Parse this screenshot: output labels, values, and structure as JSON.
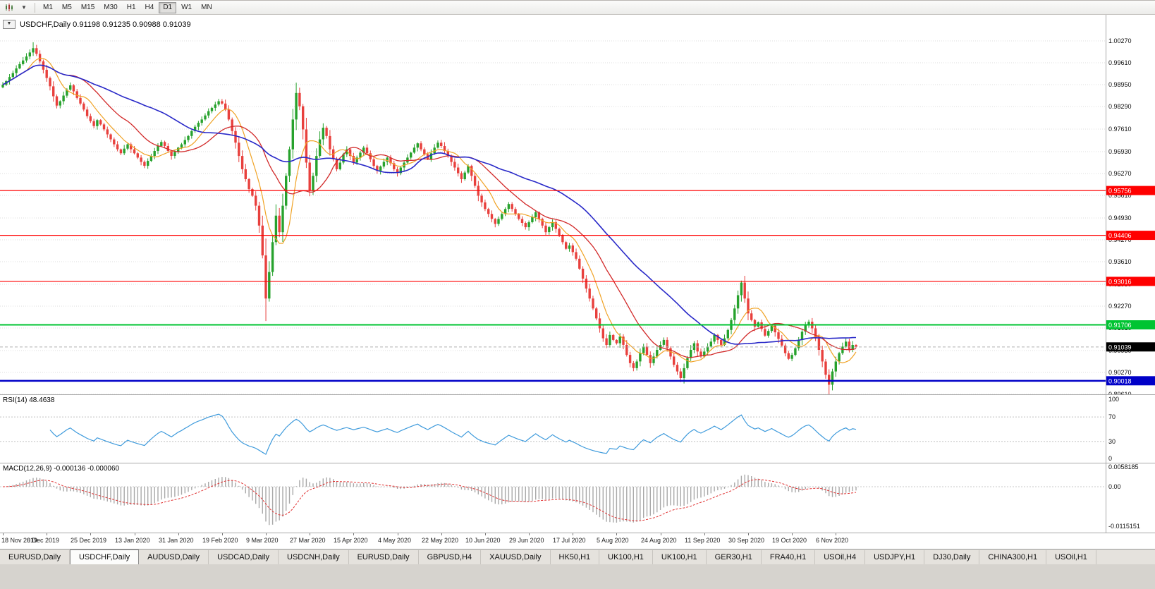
{
  "toolbar": {
    "timeframes": [
      "M1",
      "M5",
      "M15",
      "M30",
      "H1",
      "H4",
      "D1",
      "W1",
      "MN"
    ],
    "active_timeframe": "D1"
  },
  "chart": {
    "title_text": "USDCHF,Daily 0.91198 0.91235 0.90988 0.91039",
    "dropdown_glyph": "▼"
  },
  "indicators": {
    "rsi_label": "RSI(14) 48.4638",
    "macd_label": "MACD(12,26,9) -0.000136 -0.000060"
  },
  "chart_data": {
    "type": "candlestick",
    "symbol": "USDCHF",
    "period": "Daily",
    "ohlc": {
      "open": "0.91198",
      "high": "0.91235",
      "low": "0.90988",
      "close": "0.91039"
    },
    "colors": {
      "up": "#27a22d",
      "down": "#e8403d"
    },
    "price_axis": {
      "labels": [
        "1.00270",
        "0.99610",
        "0.98950",
        "0.98290",
        "0.97610",
        "0.96930",
        "0.96270",
        "0.95610",
        "0.94930",
        "0.94270",
        "0.93610",
        "0.92930",
        "0.92270",
        "0.91610",
        "0.90930",
        "0.90270",
        "0.89610"
      ]
    },
    "levels": [
      {
        "price": 0.95756,
        "label": "0.95756",
        "color": "#ff0000",
        "width": 1.2
      },
      {
        "price": 0.94406,
        "label": "0.94406",
        "color": "#ff0000",
        "width": 1.2
      },
      {
        "price": 0.93016,
        "label": "0.93016",
        "color": "#ff0000",
        "width": 1.2
      },
      {
        "price": 0.91706,
        "label": "0.91706",
        "color": "#00c432",
        "width": 2
      },
      {
        "price": 0.90018,
        "label": "0.90018",
        "color": "#0000c8",
        "width": 2.5
      }
    ],
    "current_price": {
      "value": 0.91039,
      "label": "0.91039",
      "color": "#000000"
    },
    "dates": [
      "18 Nov 2019",
      "6 Dec 2019",
      "25 Dec 2019",
      "13 Jan 2020",
      "31 Jan 2020",
      "19 Feb 2020",
      "9 Mar 2020",
      "27 Mar 2020",
      "15 Apr 2020",
      "4 May 2020",
      "22 May 2020",
      "10 Jun 2020",
      "29 Jun 2020",
      "17 Jul 2020",
      "5 Aug 2020",
      "24 Aug 2020",
      "11 Sep 2020",
      "30 Sep 2020",
      "19 Oct 2020",
      "6 Nov 2020"
    ],
    "date_tick_step": 13,
    "closes": [
      0.9895,
      0.9906,
      0.9918,
      0.993,
      0.9944,
      0.9957,
      0.9968,
      0.998,
      0.9992,
      1.0005,
      0.9988,
      0.9965,
      0.994,
      0.9915,
      0.989,
      0.986,
      0.9832,
      0.9845,
      0.9862,
      0.988,
      0.9893,
      0.9875,
      0.9855,
      0.9838,
      0.982,
      0.98,
      0.9785,
      0.977,
      0.9788,
      0.9775,
      0.976,
      0.9745,
      0.973,
      0.9715,
      0.97,
      0.9688,
      0.9702,
      0.9715,
      0.97,
      0.9688,
      0.9675,
      0.9662,
      0.965,
      0.9665,
      0.968,
      0.9695,
      0.971,
      0.9722,
      0.971,
      0.9695,
      0.968,
      0.9692,
      0.9705,
      0.9715,
      0.9728,
      0.974,
      0.9755,
      0.9768,
      0.978,
      0.979,
      0.9802,
      0.9815,
      0.9825,
      0.9835,
      0.9845,
      0.9838,
      0.982,
      0.979,
      0.9755,
      0.972,
      0.968,
      0.964,
      0.961,
      0.958,
      0.956,
      0.953,
      0.947,
      0.938,
      0.925,
      0.933,
      0.942,
      0.95,
      0.945,
      0.953,
      0.962,
      0.97,
      0.979,
      0.987,
      0.983,
      0.976,
      0.966,
      0.9575,
      0.962,
      0.968,
      0.973,
      0.9765,
      0.974,
      0.97,
      0.967,
      0.964,
      0.966,
      0.9685,
      0.97,
      0.968,
      0.966,
      0.9675,
      0.969,
      0.9705,
      0.9688,
      0.967,
      0.965,
      0.9635,
      0.9648,
      0.9662,
      0.9675,
      0.9658,
      0.964,
      0.9628,
      0.9645,
      0.966,
      0.9675,
      0.969,
      0.9705,
      0.9718,
      0.97,
      0.9685,
      0.967,
      0.9688,
      0.9705,
      0.972,
      0.971,
      0.9695,
      0.968,
      0.9662,
      0.9645,
      0.9628,
      0.961,
      0.963,
      0.965,
      0.962,
      0.959,
      0.956,
      0.954,
      0.952,
      0.9505,
      0.949,
      0.9475,
      0.949,
      0.9505,
      0.952,
      0.9535,
      0.952,
      0.9505,
      0.949,
      0.9478,
      0.9465,
      0.948,
      0.9495,
      0.951,
      0.949,
      0.947,
      0.945,
      0.9465,
      0.948,
      0.946,
      0.944,
      0.942,
      0.94,
      0.941,
      0.939,
      0.937,
      0.934,
      0.931,
      0.928,
      0.925,
      0.922,
      0.919,
      0.916,
      0.913,
      0.911,
      0.914,
      0.9125,
      0.9115,
      0.9135,
      0.911,
      0.908,
      0.9055,
      0.904,
      0.906,
      0.9085,
      0.9105,
      0.908,
      0.9055,
      0.9075,
      0.9095,
      0.911,
      0.9125,
      0.91,
      0.9075,
      0.905,
      0.903,
      0.901,
      0.904,
      0.907,
      0.9095,
      0.9115,
      0.909,
      0.9075,
      0.909,
      0.9105,
      0.912,
      0.914,
      0.9125,
      0.911,
      0.913,
      0.9155,
      0.9185,
      0.922,
      0.926,
      0.9298,
      0.925,
      0.9205,
      0.9185,
      0.9165,
      0.9178,
      0.9158,
      0.9138,
      0.9152,
      0.9168,
      0.9148,
      0.9128,
      0.9108,
      0.9085,
      0.9068,
      0.908,
      0.91,
      0.9125,
      0.915,
      0.917,
      0.918,
      0.916,
      0.913,
      0.9095,
      0.906,
      0.902,
      0.899,
      0.903,
      0.906,
      0.9085,
      0.9105,
      0.912,
      0.9095,
      0.911,
      0.9104
    ],
    "wick_overrides": [
      {
        "i": 9,
        "high": 1.0023
      },
      {
        "i": 78,
        "low": 0.9182
      },
      {
        "i": 87,
        "high": 0.9901
      },
      {
        "i": 201,
        "low": 0.8998
      },
      {
        "i": 219,
        "high": 0.9304
      },
      {
        "i": 245,
        "low": 0.896
      }
    ],
    "moving_averages": [
      {
        "period": 8,
        "color": "#f0a224",
        "width": 1.2
      },
      {
        "period": 20,
        "color": "#d22a2a",
        "width": 1.3
      },
      {
        "period": 45,
        "color": "#2929c8",
        "width": 1.6
      }
    ],
    "rsi": {
      "value": "48.4638",
      "axis_labels": [
        "100",
        "70",
        "30",
        "0"
      ],
      "axis_values": [
        100,
        70,
        30,
        0
      ],
      "level_lines": [
        70,
        30
      ],
      "line_color": "#3f9bdc"
    },
    "macd": {
      "value_main": "-0.000136",
      "value_signal": "-0.000060",
      "axis_labels": [
        "0.0058185",
        "0.00",
        "-0.0115151"
      ],
      "range": {
        "max": 0.0058185,
        "min": -0.0115151
      },
      "histogram_color": "#a9a9a9",
      "signal_color": "#e03030"
    }
  },
  "tabs": {
    "active_index": 1,
    "items": [
      "EURUSD,Daily",
      "USDCHF,Daily",
      "AUDUSD,Daily",
      "USDCAD,Daily",
      "USDCNH,Daily",
      "EURUSD,Daily",
      "GBPUSD,H4",
      "XAUUSD,Daily",
      "HK50,H1",
      "UK100,H1",
      "UK100,H1",
      "GER30,H1",
      "FRA40,H1",
      "USOil,H4",
      "USDJPY,H1",
      "DJ30,Daily",
      "CHINA300,H1",
      "USOil,H1"
    ]
  }
}
